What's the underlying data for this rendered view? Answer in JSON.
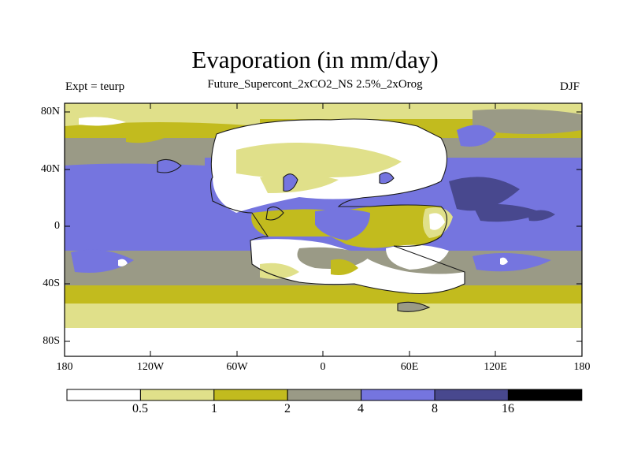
{
  "title": "Evaporation (in mm/day)",
  "subtitle": "Future_Supercont_2xCO2_NS 2.5%_2xOrog",
  "left_label": "Expt = teurp",
  "right_label": "DJF",
  "map": {
    "projection": "equirectangular",
    "lon_range": [
      -180,
      180
    ],
    "lat_range": [
      -90,
      90
    ],
    "lat_ticks": [
      "80N",
      "40N",
      "0",
      "40S",
      "80S"
    ],
    "lon_ticks": [
      "180",
      "120W",
      "60W",
      "0",
      "60E",
      "120E",
      "180"
    ]
  },
  "colorbar": {
    "levels": [
      "0.5",
      "1",
      "2",
      "4",
      "8",
      "16"
    ],
    "colors": [
      "#ffffff",
      "#e0e08a",
      "#c2bb1e",
      "#9a9a86",
      "#7575df",
      "#48488e",
      "#000000"
    ]
  }
}
